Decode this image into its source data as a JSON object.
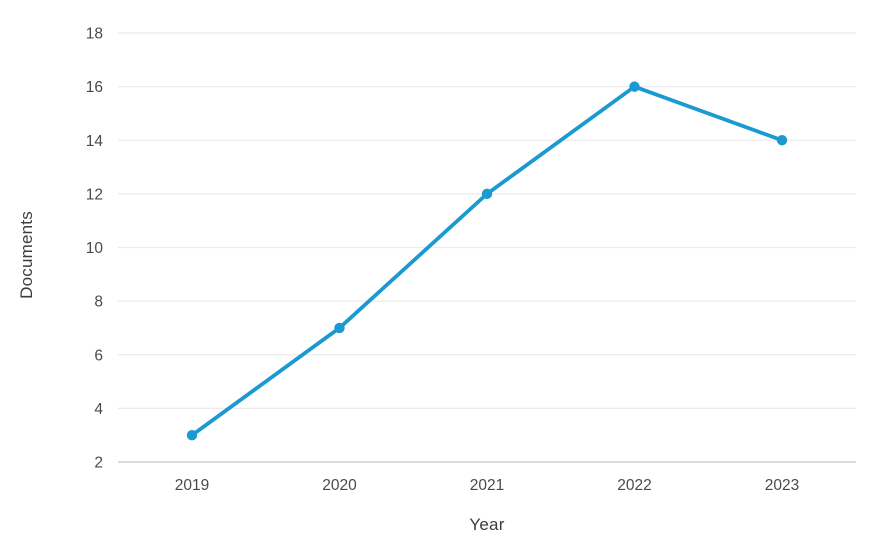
{
  "chart_data": {
    "type": "line",
    "title": "",
    "xlabel": "Year",
    "ylabel": "Documents",
    "categories": [
      "2019",
      "2020",
      "2021",
      "2022",
      "2023"
    ],
    "series": [
      {
        "name": "Documents",
        "values": [
          3,
          7,
          12,
          16,
          14
        ]
      }
    ],
    "y_ticks": [
      2,
      4,
      6,
      8,
      10,
      12,
      14,
      16,
      18
    ],
    "ylim": [
      2,
      18
    ],
    "grid": "horizontal",
    "legend": "none",
    "line_color": "#1b9ad1",
    "marker": "circle",
    "tick_text_color": "#4a4a4a",
    "grid_color": "#ebebeb",
    "axis_line_color": "#cfcfcf"
  }
}
